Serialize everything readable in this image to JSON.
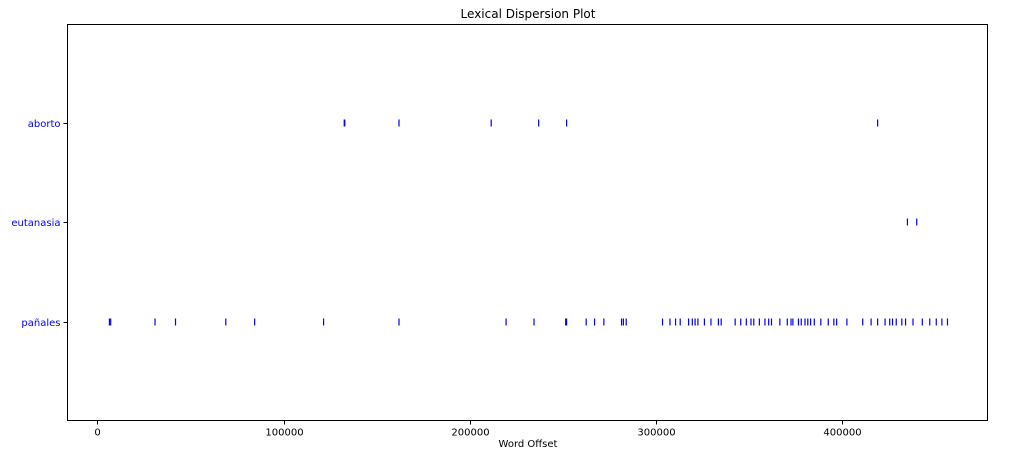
{
  "chart_data": {
    "type": "scatter",
    "title": "Lexical Dispersion Plot",
    "xlabel": "Word Offset",
    "ylabel": "",
    "xlim": [
      -16000,
      478000
    ],
    "xticks": [
      0,
      100000,
      200000,
      300000,
      400000
    ],
    "xtick_labels": [
      "0",
      "100000",
      "200000",
      "300000",
      "400000"
    ],
    "grid": false,
    "marker": "|",
    "colors": {
      "marker": "#0000ff",
      "tick_label": "#0000ff",
      "axis": "#000000"
    },
    "categories": [
      "aborto",
      "eutanasia",
      "pañales"
    ],
    "series": [
      {
        "category": "aborto",
        "x": [
          132600,
          132900,
          162000,
          211500,
          237000,
          252000,
          419000
        ]
      },
      {
        "category": "eutanasia",
        "x": [
          435000,
          440000
        ]
      },
      {
        "category": "pañales",
        "x": [
          6500,
          7200,
          31000,
          42000,
          69000,
          84500,
          121500,
          162000,
          219500,
          234500,
          251500,
          252000,
          262500,
          267000,
          272000,
          281500,
          282500,
          284000,
          303500,
          307500,
          310500,
          313000,
          317500,
          319500,
          321000,
          322500,
          326000,
          329500,
          333500,
          335000,
          342500,
          345500,
          348500,
          351000,
          352500,
          355500,
          358500,
          360500,
          362000,
          366500,
          370500,
          372500,
          373500,
          376500,
          378000,
          380000,
          381500,
          383000,
          385000,
          388500,
          392500,
          395500,
          397000,
          402500,
          411000,
          415500,
          419000,
          423000,
          425500,
          427000,
          429000,
          432000,
          434000,
          438000,
          443000,
          447000,
          450500,
          453500,
          456500
        ]
      }
    ]
  }
}
